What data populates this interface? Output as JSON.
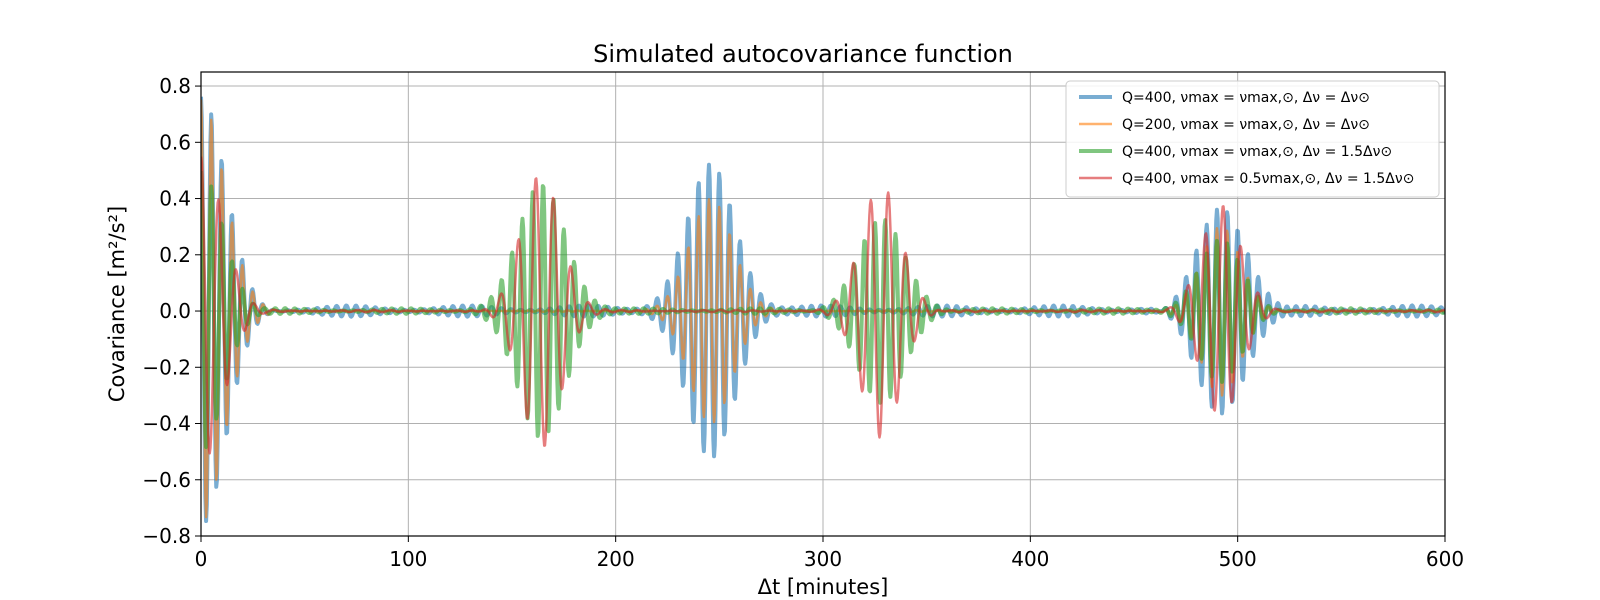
{
  "chart_data": {
    "type": "line",
    "title": "Simulated autocovariance function",
    "xlabel": "Δt [minutes]",
    "ylabel": "Covariance [m²/s²]",
    "xlim": [
      0,
      600
    ],
    "ylim": [
      -0.8,
      0.85
    ],
    "x_ticks": [
      0,
      100,
      200,
      300,
      400,
      500,
      600
    ],
    "x_tick_labels": [
      "0",
      "100",
      "200",
      "300",
      "400",
      "500",
      "600"
    ],
    "y_ticks": [
      -0.8,
      -0.6,
      -0.4,
      -0.2,
      0.0,
      0.2,
      0.4,
      0.6,
      0.8
    ],
    "y_tick_labels": [
      "−0.8",
      "−0.6",
      "−0.4",
      "−0.2",
      "0.0",
      "0.2",
      "0.4",
      "0.6",
      "0.8"
    ],
    "grid": true,
    "legend_position": "top-right",
    "series": [
      {
        "name": "Q=400, νmax = νmax,⊙, Δν = Δν⊙",
        "color": "#1f77b4",
        "alpha": 0.6,
        "line_width": 4,
        "period_min": 5.0,
        "initial_amplitude": 0.75,
        "envelopes": [
          {
            "center": 0,
            "amplitude": 0.75,
            "half_width": 25
          },
          {
            "center": 246,
            "amplitude": 0.54,
            "half_width": 24
          },
          {
            "center": 492,
            "amplitude": 0.36,
            "half_width": 25
          }
        ],
        "noise_amplitude": 0.02
      },
      {
        "name": "Q=200, νmax = νmax,⊙, Δν = Δν⊙",
        "color": "#ff7f0e",
        "alpha": 0.6,
        "line_width": 2.5,
        "period_min": 5.0,
        "initial_amplitude": 0.75,
        "envelopes": [
          {
            "center": 0,
            "amplitude": 0.75,
            "half_width": 24
          },
          {
            "center": 246,
            "amplitude": 0.4,
            "half_width": 22
          },
          {
            "center": 492,
            "amplitude": 0.3,
            "half_width": 20
          }
        ],
        "noise_amplitude": 0.003
      },
      {
        "name": "Q=400, νmax = νmax,⊙, Δν = 1.5Δν⊙",
        "color": "#2ca02c",
        "alpha": 0.6,
        "line_width": 4,
        "period_min": 5.0,
        "initial_amplitude": 0.5,
        "envelopes": [
          {
            "center": 0,
            "amplitude": 0.5,
            "half_width": 22
          },
          {
            "center": 164,
            "amplitude": 0.46,
            "half_width": 24
          },
          {
            "center": 328,
            "amplitude": 0.32,
            "half_width": 24
          },
          {
            "center": 492,
            "amplitude": 0.25,
            "half_width": 22
          }
        ],
        "noise_amplitude": 0.01
      },
      {
        "name": "Q=400, νmax = 0.5νmax,⊙, Δν = 1.5Δν⊙",
        "color": "#d62728",
        "alpha": 0.6,
        "line_width": 2.5,
        "period_min": 8.5,
        "initial_amplitude": 0.55,
        "envelopes": [
          {
            "center": 0,
            "amplitude": 0.55,
            "half_width": 22
          },
          {
            "center": 164,
            "amplitude": 0.49,
            "half_width": 20
          },
          {
            "center": 328,
            "amplitude": 0.45,
            "half_width": 20
          },
          {
            "center": 492,
            "amplitude": 0.38,
            "half_width": 20
          }
        ],
        "noise_amplitude": 0.004
      }
    ]
  }
}
